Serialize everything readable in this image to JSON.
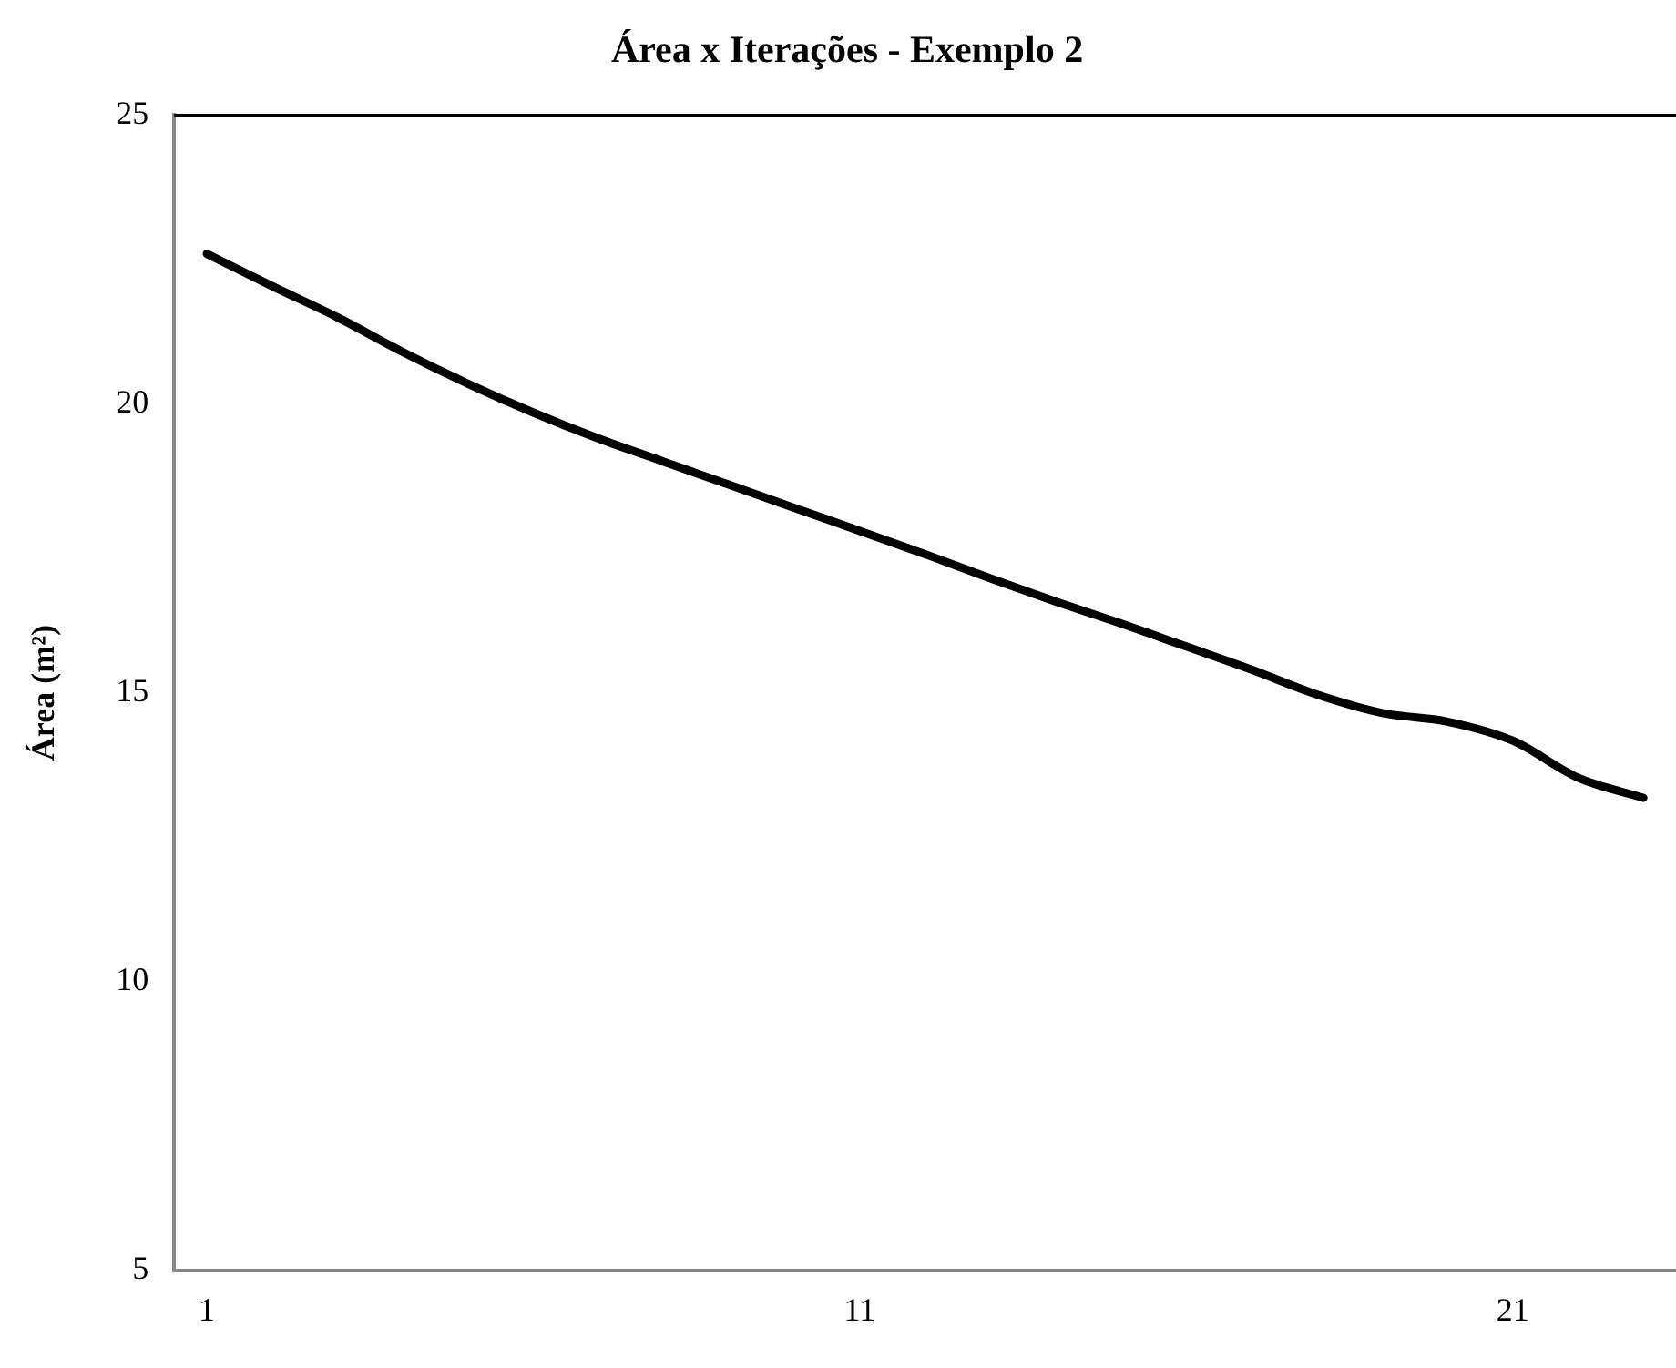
{
  "chart_data": {
    "type": "line",
    "title": "Área x Iterações - Exemplo 2",
    "ylabel": "Área (m²)",
    "categories": [
      "1",
      null,
      null,
      null,
      null,
      null,
      null,
      null,
      null,
      null,
      "11",
      null,
      null,
      null,
      null,
      null,
      null,
      null,
      null,
      null,
      "21",
      null,
      null
    ],
    "series": [
      {
        "color": "#000000",
        "values": [
          22.6,
          22.04,
          21.5,
          20.9,
          20.35,
          19.85,
          19.4,
          19.0,
          18.6,
          18.2,
          17.8,
          17.4,
          16.98,
          16.58,
          16.2,
          15.8,
          15.4,
          14.97,
          14.65,
          14.5,
          14.17,
          13.53,
          13.18
        ]
      }
    ],
    "ylim": [
      5,
      25
    ],
    "yticks": [
      5,
      10,
      15,
      20,
      25
    ],
    "grid": false,
    "legend": false,
    "marker": "none",
    "line_style": "solid"
  }
}
